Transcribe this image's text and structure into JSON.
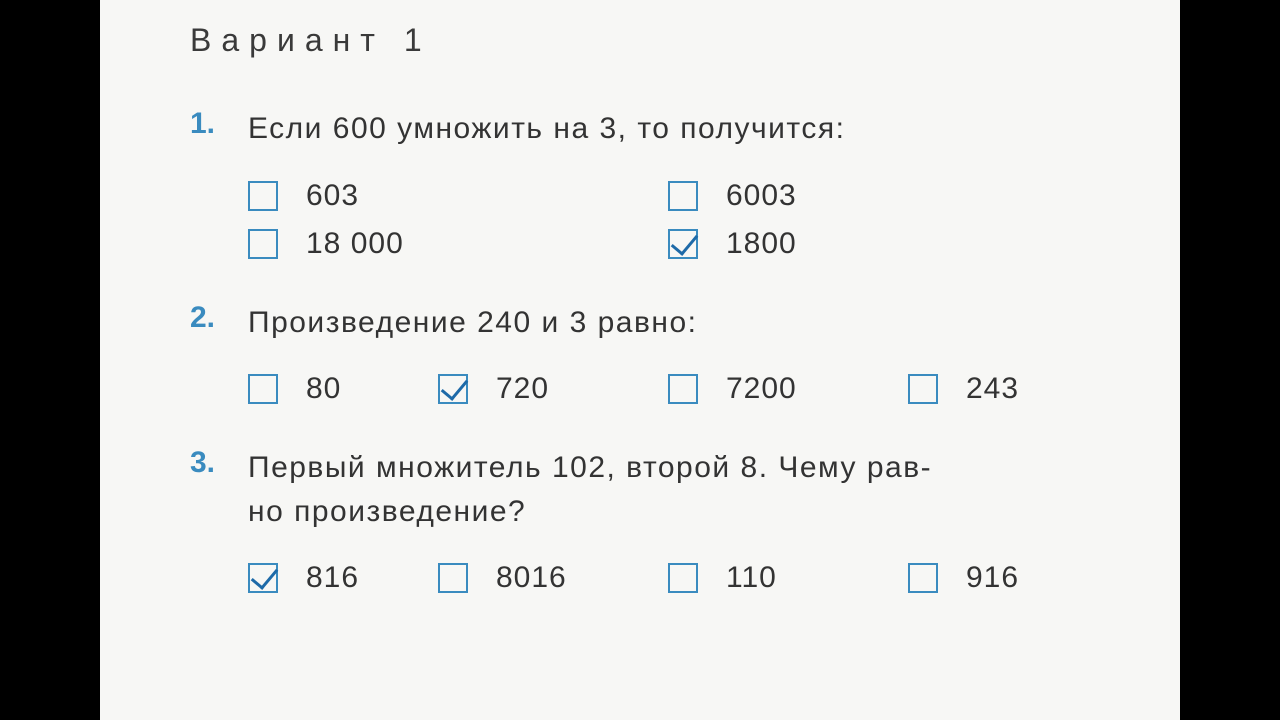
{
  "title": "Вариант 1",
  "colors": {
    "page_bg": "#f7f7f5",
    "side_bg": "#000000",
    "text": "#333333",
    "accent": "#3a8bbf",
    "check": "#1e6aa8"
  },
  "questions": [
    {
      "num": "1.",
      "prompt": "Если 600 умножить на 3, то получится:",
      "layout": "2col",
      "options": [
        {
          "label": "603",
          "checked": false
        },
        {
          "label": "6003",
          "checked": false
        },
        {
          "label": "18 000",
          "checked": false
        },
        {
          "label": "1800",
          "checked": true
        }
      ]
    },
    {
      "num": "2.",
      "prompt": "Произведение 240 и 3 равно:",
      "layout": "4col",
      "options": [
        {
          "label": "80",
          "checked": false
        },
        {
          "label": "720",
          "checked": true
        },
        {
          "label": "7200",
          "checked": false
        },
        {
          "label": "243",
          "checked": false
        }
      ]
    },
    {
      "num": "3.",
      "prompt": "Первый множитель 102, второй 8. Чему рав-\nно произведение?",
      "layout": "4col",
      "options": [
        {
          "label": "816",
          "checked": true
        },
        {
          "label": "8016",
          "checked": false
        },
        {
          "label": "110",
          "checked": false
        },
        {
          "label": "916",
          "checked": false
        }
      ]
    }
  ]
}
